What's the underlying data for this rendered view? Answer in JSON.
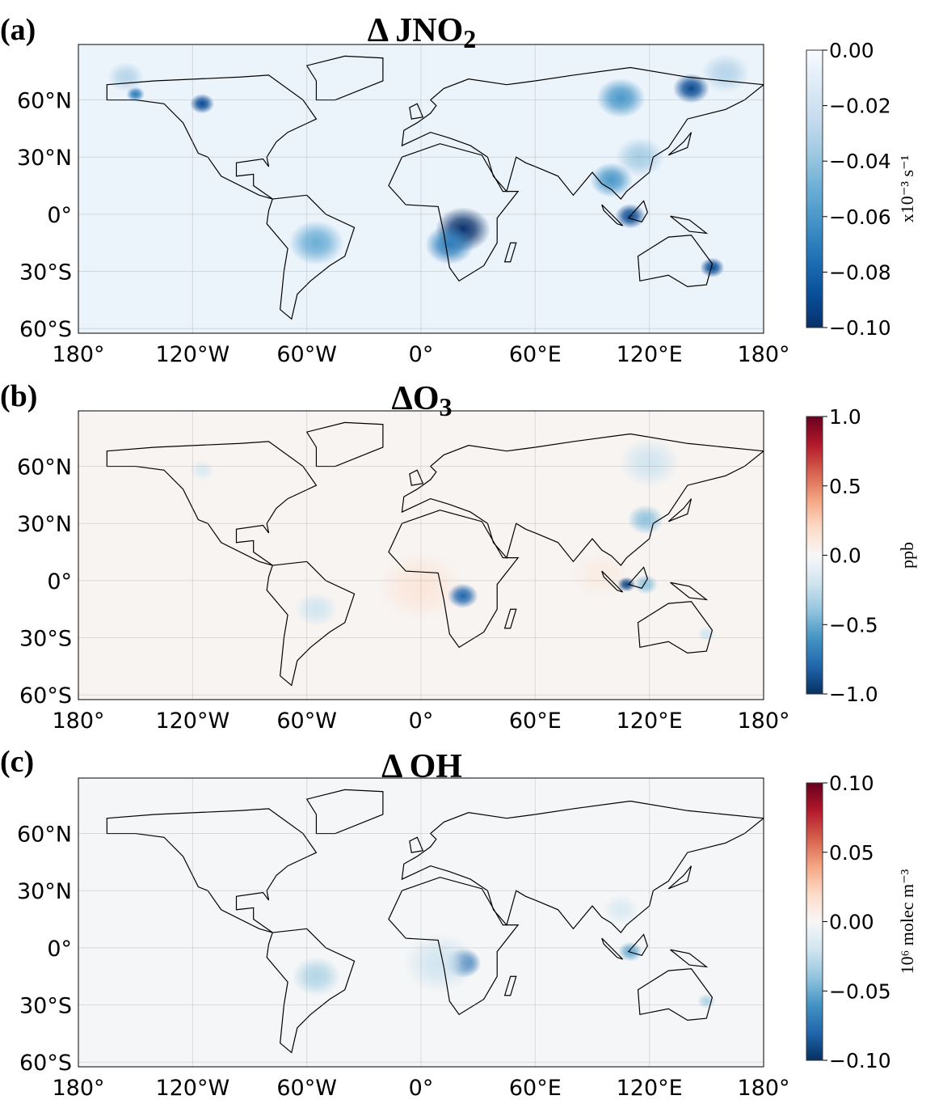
{
  "chart_data": [
    {
      "type": "heatmap",
      "panel_label": "(a)",
      "title": "Δ JNO",
      "title_sub": "2",
      "colormap": "Blues_r",
      "colorbar": {
        "ticks": [
          "0.00",
          "−0.02",
          "−0.04",
          "−0.06",
          "−0.08",
          "−0.10"
        ],
        "range": [
          -0.1,
          0.0
        ],
        "label": "x10⁻³ s⁻¹"
      },
      "xticks": [
        "180°",
        "120°W",
        "60°W",
        "0°",
        "60°E",
        "120°E",
        "180°"
      ],
      "yticks": [
        "60°N",
        "30°N",
        "0°",
        "30°S",
        "60°S"
      ],
      "background": -0.006,
      "hotspots": [
        {
          "lon": 22,
          "lat": -8,
          "value": -0.1,
          "spread": 9
        },
        {
          "lon": 15,
          "lat": -16,
          "value": -0.07,
          "spread": 8
        },
        {
          "lon": -55,
          "lat": -15,
          "value": -0.05,
          "spread": 9
        },
        {
          "lon": 110,
          "lat": -1,
          "value": -0.09,
          "spread": 5
        },
        {
          "lon": 100,
          "lat": 18,
          "value": -0.06,
          "spread": 7
        },
        {
          "lon": 115,
          "lat": 30,
          "value": -0.035,
          "spread": 8
        },
        {
          "lon": 142,
          "lat": 66,
          "value": -0.09,
          "spread": 6
        },
        {
          "lon": 105,
          "lat": 61,
          "value": -0.06,
          "spread": 8
        },
        {
          "lon": 153,
          "lat": -28,
          "value": -0.09,
          "spread": 4
        },
        {
          "lon": -115,
          "lat": 58,
          "value": -0.09,
          "spread": 4
        },
        {
          "lon": -150,
          "lat": 63,
          "value": -0.07,
          "spread": 3
        },
        {
          "lon": -155,
          "lat": 72,
          "value": -0.03,
          "spread": 6
        },
        {
          "lon": 160,
          "lat": 74,
          "value": -0.03,
          "spread": 8
        }
      ]
    },
    {
      "type": "heatmap",
      "panel_label": "(b)",
      "title": "ΔO",
      "title_sub": "3",
      "colormap": "RdBu_r",
      "colorbar": {
        "ticks": [
          "1.0",
          "0.5",
          "0.0",
          "−0.5",
          "−1.0"
        ],
        "range": [
          -1.0,
          1.0
        ],
        "label": "ppb"
      },
      "xticks": [
        "180°",
        "120°W",
        "60°W",
        "0°",
        "60°E",
        "120°E",
        "180°"
      ],
      "yticks": [
        "60°N",
        "30°N",
        "0°",
        "30°S",
        "60°S"
      ],
      "background": 0.02,
      "hotspots": [
        {
          "lon": 0,
          "lat": -3,
          "value": 0.12,
          "spread": 14
        },
        {
          "lon": 95,
          "lat": 3,
          "value": 0.08,
          "spread": 10
        },
        {
          "lon": 22,
          "lat": -8,
          "value": -0.8,
          "spread": 5
        },
        {
          "lon": 108,
          "lat": -2,
          "value": -0.9,
          "spread": 3
        },
        {
          "lon": 118,
          "lat": -2,
          "value": -0.4,
          "spread": 4
        },
        {
          "lon": 118,
          "lat": 32,
          "value": -0.4,
          "spread": 6
        },
        {
          "lon": -55,
          "lat": -15,
          "value": -0.2,
          "spread": 7
        },
        {
          "lon": 120,
          "lat": 62,
          "value": -0.2,
          "spread": 10
        },
        {
          "lon": 150,
          "lat": -28,
          "value": -0.2,
          "spread": 3
        },
        {
          "lon": -115,
          "lat": 58,
          "value": -0.15,
          "spread": 4
        }
      ]
    },
    {
      "type": "heatmap",
      "panel_label": "(c)",
      "title": "Δ OH",
      "title_sub": "",
      "colormap": "RdBu_r",
      "colorbar": {
        "ticks": [
          "0.10",
          "0.05",
          "0.00",
          "−0.05",
          "−0.10"
        ],
        "range": [
          -0.1,
          0.1
        ],
        "label": "10⁶ molec m⁻³"
      },
      "xticks": [
        "180°",
        "120°W",
        "60°W",
        "0°",
        "60°E",
        "120°E",
        "180°"
      ],
      "yticks": [
        "60°N",
        "30°N",
        "0°",
        "30°S",
        "60°S"
      ],
      "background": -0.001,
      "hotspots": [
        {
          "lon": 22,
          "lat": -8,
          "value": -0.08,
          "spread": 6
        },
        {
          "lon": 10,
          "lat": -8,
          "value": -0.02,
          "spread": 12
        },
        {
          "lon": 110,
          "lat": -2,
          "value": -0.05,
          "spread": 4
        },
        {
          "lon": -55,
          "lat": -15,
          "value": -0.03,
          "spread": 8
        },
        {
          "lon": 150,
          "lat": -28,
          "value": -0.03,
          "spread": 3
        },
        {
          "lon": 105,
          "lat": 20,
          "value": -0.015,
          "spread": 6
        }
      ]
    }
  ]
}
